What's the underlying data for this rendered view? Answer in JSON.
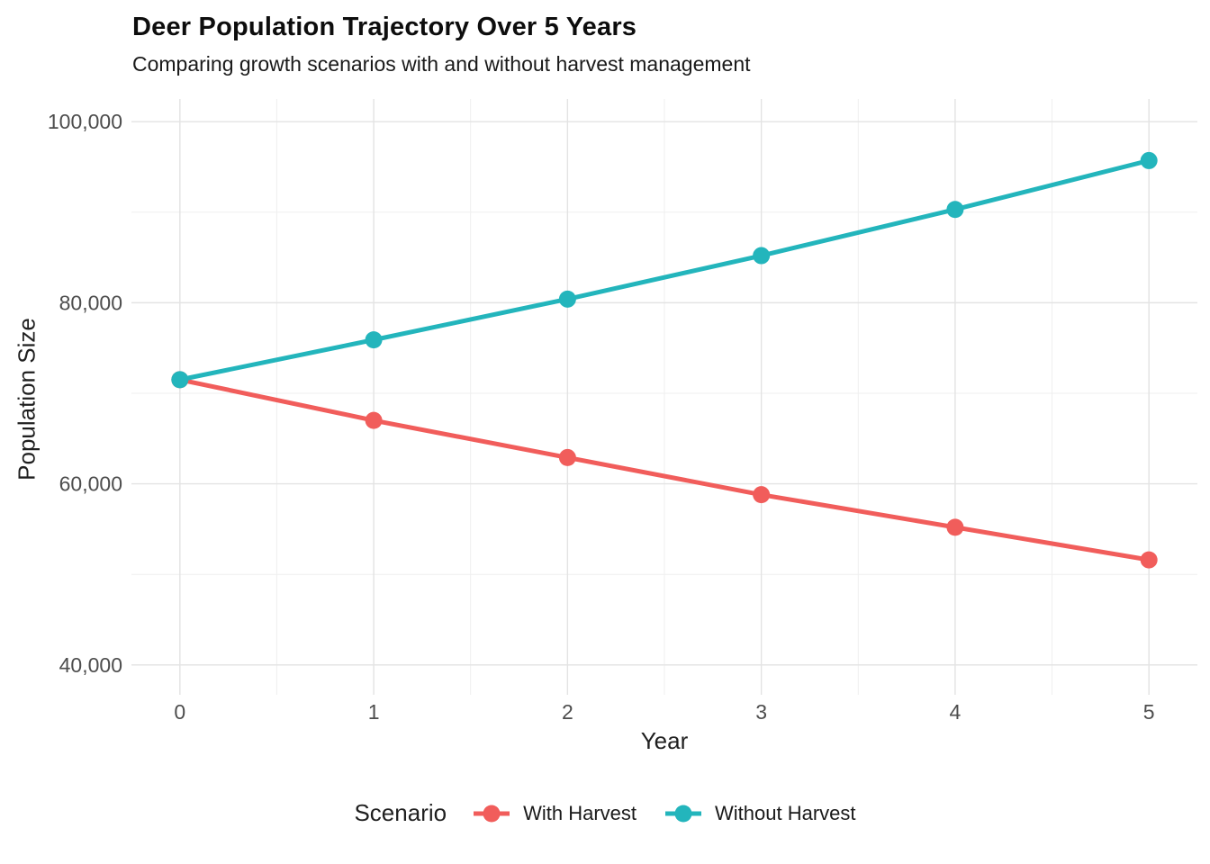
{
  "chart_data": {
    "type": "line",
    "title": "Deer Population Trajectory Over 5 Years",
    "subtitle": "Comparing growth scenarios with and without harvest management",
    "xlabel": "Year",
    "ylabel": "Population Size",
    "x": [
      0,
      1,
      2,
      3,
      4,
      5
    ],
    "series": [
      {
        "name": "With Harvest",
        "color": "#F15D5B",
        "values": [
          71500,
          67000,
          62900,
          58800,
          55200,
          51600
        ]
      },
      {
        "name": "Without Harvest",
        "color": "#23B5BC",
        "values": [
          71500,
          75900,
          80400,
          85200,
          90300,
          95700
        ]
      }
    ],
    "legend": {
      "title": "Scenario",
      "position": "bottom"
    },
    "x_axis": {
      "ticks": [
        0,
        1,
        2,
        3,
        4,
        5
      ],
      "tick_labels": [
        "0",
        "1",
        "2",
        "3",
        "4",
        "5"
      ],
      "minor_ticks": [
        0.5,
        1.5,
        2.5,
        3.5,
        4.5
      ],
      "range": [
        -0.25,
        5.25
      ]
    },
    "y_axis": {
      "ticks": [
        40000,
        60000,
        80000,
        100000
      ],
      "tick_labels": [
        "40,000",
        "60,000",
        "80,000",
        "100,000"
      ],
      "minor_ticks": [
        50000,
        70000,
        90000
      ],
      "range": [
        36700,
        102500
      ]
    },
    "grid": true,
    "style": {
      "background": "#FFFFFF",
      "major_grid_color": "#E3E3E3",
      "minor_grid_color": "#EFEFEF",
      "tick_label_color": "#4D4D4D",
      "line_width": 5,
      "point_radius": 9.5
    }
  }
}
